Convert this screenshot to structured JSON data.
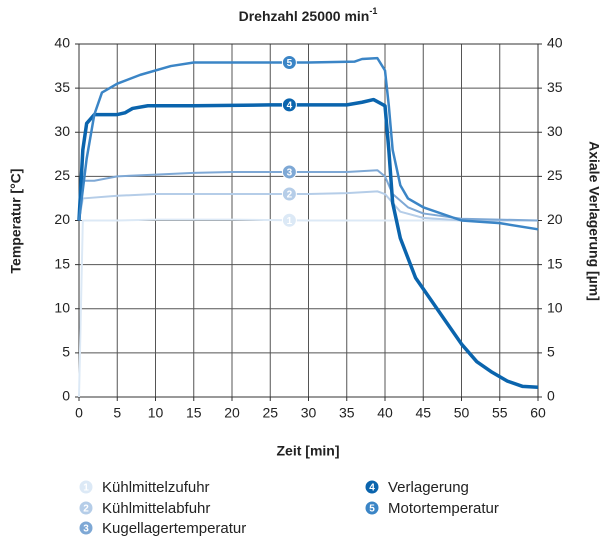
{
  "chart_data": {
    "type": "line",
    "title": "Drehzahl 25000 min",
    "title_superscript": "-1",
    "xlabel": "Zeit [min]",
    "ylabel": "Temperatur [°C]",
    "y2label": "Axiale Verlagerung [µm]",
    "xlim": [
      0,
      60
    ],
    "xticks": [
      0,
      5,
      10,
      15,
      20,
      25,
      30,
      35,
      40,
      45,
      50,
      55,
      60
    ],
    "ylim": [
      0,
      40
    ],
    "yticks": [
      0,
      5,
      10,
      15,
      20,
      25,
      30,
      35,
      40
    ],
    "y2lim": [
      0,
      40
    ],
    "y2ticks": [
      0,
      5,
      10,
      15,
      20,
      25,
      30,
      35,
      40
    ],
    "grid": true,
    "series": [
      {
        "name": "Kühlmittelzufuhr",
        "marker_label": "1",
        "color": "#dce9f6",
        "width": 2,
        "x": [
          0,
          0.5,
          5,
          10,
          20,
          30,
          40,
          50,
          60
        ],
        "values": [
          0,
          20,
          20,
          20.1,
          20.1,
          20,
          20,
          20,
          20
        ]
      },
      {
        "name": "Kühlmittelabfuhr",
        "marker_label": "2",
        "color": "#b5cde8",
        "width": 2,
        "x": [
          0,
          0.5,
          5,
          10,
          20,
          30,
          35,
          39,
          40,
          42,
          45,
          50,
          60
        ],
        "values": [
          20,
          22.5,
          22.8,
          23,
          23,
          23,
          23.1,
          23.3,
          23,
          21,
          20.3,
          20,
          20
        ]
      },
      {
        "name": "Kugellagertemperatur",
        "marker_label": "3",
        "color": "#7ea8d5",
        "width": 2,
        "x": [
          0,
          0.5,
          2,
          5,
          10,
          15,
          20,
          30,
          35,
          39,
          40,
          41,
          43,
          45,
          50,
          60
        ],
        "values": [
          20,
          24.5,
          24.5,
          25,
          25.2,
          25.4,
          25.5,
          25.5,
          25.5,
          25.7,
          25,
          23,
          21.5,
          20.8,
          20.2,
          20
        ]
      },
      {
        "name": "Verlagerung",
        "marker_label": "4",
        "color": "#0a64ad",
        "width": 3.5,
        "axis": "y2",
        "x": [
          0,
          0.5,
          1,
          2,
          5,
          6,
          7,
          9,
          15,
          25,
          35,
          37,
          38.5,
          40,
          40.5,
          41,
          42,
          44,
          46,
          48,
          50,
          52,
          54,
          56,
          58,
          60
        ],
        "values": [
          20,
          28,
          31,
          32,
          32,
          32.2,
          32.7,
          33,
          33,
          33.1,
          33.1,
          33.4,
          33.7,
          33,
          28,
          22,
          18,
          13.5,
          11,
          8.5,
          6,
          4,
          2.8,
          1.8,
          1.2,
          1.1
        ]
      },
      {
        "name": "Motortemperatur",
        "marker_label": "5",
        "color": "#3b85c6",
        "width": 2.5,
        "x": [
          0,
          1,
          2,
          3,
          5,
          8,
          12,
          15,
          20,
          30,
          36,
          37,
          39,
          40,
          40.5,
          41,
          42,
          43,
          45,
          50,
          55,
          60
        ],
        "values": [
          20,
          27,
          32,
          34.5,
          35.5,
          36.5,
          37.5,
          37.9,
          37.9,
          37.9,
          38,
          38.3,
          38.4,
          37,
          33,
          28,
          24,
          22.5,
          21.5,
          20,
          19.7,
          19
        ]
      }
    ]
  }
}
